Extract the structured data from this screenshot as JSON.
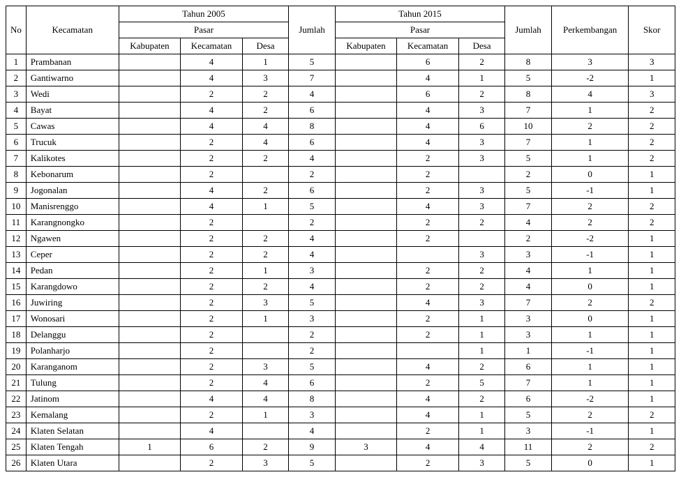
{
  "table": {
    "headers": {
      "no": "No",
      "kecamatan": "Kecamatan",
      "tahun2005": "Tahun 2005",
      "tahun2015": "Tahun 2015",
      "pasar": "Pasar",
      "kabupaten": "Kabupaten",
      "kecamatan_col": "Kecamatan",
      "desa": "Desa",
      "jumlah": "Jumlah",
      "perkembangan": "Perkembangan",
      "skor": "Skor"
    },
    "rows": [
      {
        "no": "1",
        "name": "Prambanan",
        "kab05": "",
        "kec05": "4",
        "desa05": "1",
        "jml05": "5",
        "kab15": "",
        "kec15": "6",
        "desa15": "2",
        "jml15": "8",
        "perk": "3",
        "skor": "3"
      },
      {
        "no": "2",
        "name": "Gantiwarno",
        "kab05": "",
        "kec05": "4",
        "desa05": "3",
        "jml05": "7",
        "kab15": "",
        "kec15": "4",
        "desa15": "1",
        "jml15": "5",
        "perk": "-2",
        "skor": "1"
      },
      {
        "no": "3",
        "name": "Wedi",
        "kab05": "",
        "kec05": "2",
        "desa05": "2",
        "jml05": "4",
        "kab15": "",
        "kec15": "6",
        "desa15": "2",
        "jml15": "8",
        "perk": "4",
        "skor": "3"
      },
      {
        "no": "4",
        "name": "Bayat",
        "kab05": "",
        "kec05": "4",
        "desa05": "2",
        "jml05": "6",
        "kab15": "",
        "kec15": "4",
        "desa15": "3",
        "jml15": "7",
        "perk": "1",
        "skor": "2"
      },
      {
        "no": "5",
        "name": "Cawas",
        "kab05": "",
        "kec05": "4",
        "desa05": "4",
        "jml05": "8",
        "kab15": "",
        "kec15": "4",
        "desa15": "6",
        "jml15": "10",
        "perk": "2",
        "skor": "2"
      },
      {
        "no": "6",
        "name": "Trucuk",
        "kab05": "",
        "kec05": "2",
        "desa05": "4",
        "jml05": "6",
        "kab15": "",
        "kec15": "4",
        "desa15": "3",
        "jml15": "7",
        "perk": "1",
        "skor": "2"
      },
      {
        "no": "7",
        "name": "Kalikotes",
        "kab05": "",
        "kec05": "2",
        "desa05": "2",
        "jml05": "4",
        "kab15": "",
        "kec15": "2",
        "desa15": "3",
        "jml15": "5",
        "perk": "1",
        "skor": "2"
      },
      {
        "no": "8",
        "name": "Kebonarum",
        "kab05": "",
        "kec05": "2",
        "desa05": "",
        "jml05": "2",
        "kab15": "",
        "kec15": "2",
        "desa15": "",
        "jml15": "2",
        "perk": "0",
        "skor": "1"
      },
      {
        "no": "9",
        "name": "Jogonalan",
        "kab05": "",
        "kec05": "4",
        "desa05": "2",
        "jml05": "6",
        "kab15": "",
        "kec15": "2",
        "desa15": "3",
        "jml15": "5",
        "perk": "-1",
        "skor": "1"
      },
      {
        "no": "10",
        "name": "Manisrenggo",
        "kab05": "",
        "kec05": "4",
        "desa05": "1",
        "jml05": "5",
        "kab15": "",
        "kec15": "4",
        "desa15": "3",
        "jml15": "7",
        "perk": "2",
        "skor": "2"
      },
      {
        "no": "11",
        "name": "Karangnongko",
        "kab05": "",
        "kec05": "2",
        "desa05": "",
        "jml05": "2",
        "kab15": "",
        "kec15": "2",
        "desa15": "2",
        "jml15": "4",
        "perk": "2",
        "skor": "2"
      },
      {
        "no": "12",
        "name": "Ngawen",
        "kab05": "",
        "kec05": "2",
        "desa05": "2",
        "jml05": "4",
        "kab15": "",
        "kec15": "2",
        "desa15": "",
        "jml15": "2",
        "perk": "-2",
        "skor": "1"
      },
      {
        "no": "13",
        "name": "Ceper",
        "kab05": "",
        "kec05": "2",
        "desa05": "2",
        "jml05": "4",
        "kab15": "",
        "kec15": "",
        "desa15": "3",
        "jml15": "3",
        "perk": "-1",
        "skor": "1"
      },
      {
        "no": "14",
        "name": "Pedan",
        "kab05": "",
        "kec05": "2",
        "desa05": "1",
        "jml05": "3",
        "kab15": "",
        "kec15": "2",
        "desa15": "2",
        "jml15": "4",
        "perk": "1",
        "skor": "1"
      },
      {
        "no": "15",
        "name": "Karangdowo",
        "kab05": "",
        "kec05": "2",
        "desa05": "2",
        "jml05": "4",
        "kab15": "",
        "kec15": "2",
        "desa15": "2",
        "jml15": "4",
        "perk": "0",
        "skor": "1"
      },
      {
        "no": "16",
        "name": "Juwiring",
        "kab05": "",
        "kec05": "2",
        "desa05": "3",
        "jml05": "5",
        "kab15": "",
        "kec15": "4",
        "desa15": "3",
        "jml15": "7",
        "perk": "2",
        "skor": "2"
      },
      {
        "no": "17",
        "name": "Wonosari",
        "kab05": "",
        "kec05": "2",
        "desa05": "1",
        "jml05": "3",
        "kab15": "",
        "kec15": "2",
        "desa15": "1",
        "jml15": "3",
        "perk": "0",
        "skor": "1"
      },
      {
        "no": "18",
        "name": "Delanggu",
        "kab05": "",
        "kec05": "2",
        "desa05": "",
        "jml05": "2",
        "kab15": "",
        "kec15": "2",
        "desa15": "1",
        "jml15": "3",
        "perk": "1",
        "skor": "1"
      },
      {
        "no": "19",
        "name": "Polanharjo",
        "kab05": "",
        "kec05": "2",
        "desa05": "",
        "jml05": "2",
        "kab15": "",
        "kec15": "",
        "desa15": "1",
        "jml15": "1",
        "perk": "-1",
        "skor": "1"
      },
      {
        "no": "20",
        "name": "Karanganom",
        "kab05": "",
        "kec05": "2",
        "desa05": "3",
        "jml05": "5",
        "kab15": "",
        "kec15": "4",
        "desa15": "2",
        "jml15": "6",
        "perk": "1",
        "skor": "1"
      },
      {
        "no": "21",
        "name": "Tulung",
        "kab05": "",
        "kec05": "2",
        "desa05": "4",
        "jml05": "6",
        "kab15": "",
        "kec15": "2",
        "desa15": "5",
        "jml15": "7",
        "perk": "1",
        "skor": "1"
      },
      {
        "no": "22",
        "name": "Jatinom",
        "kab05": "",
        "kec05": "4",
        "desa05": "4",
        "jml05": "8",
        "kab15": "",
        "kec15": "4",
        "desa15": "2",
        "jml15": "6",
        "perk": "-2",
        "skor": "1"
      },
      {
        "no": "23",
        "name": "Kemalang",
        "kab05": "",
        "kec05": "2",
        "desa05": "1",
        "jml05": "3",
        "kab15": "",
        "kec15": "4",
        "desa15": "1",
        "jml15": "5",
        "perk": "2",
        "skor": "2"
      },
      {
        "no": "24",
        "name": "Klaten Selatan",
        "kab05": "",
        "kec05": "4",
        "desa05": "",
        "jml05": "4",
        "kab15": "",
        "kec15": "2",
        "desa15": "1",
        "jml15": "3",
        "perk": "-1",
        "skor": "1"
      },
      {
        "no": "25",
        "name": "Klaten Tengah",
        "kab05": "1",
        "kec05": "6",
        "desa05": "2",
        "jml05": "9",
        "kab15": "3",
        "kec15": "4",
        "desa15": "4",
        "jml15": "11",
        "perk": "2",
        "skor": "2"
      },
      {
        "no": "26",
        "name": "Klaten Utara",
        "kab05": "",
        "kec05": "2",
        "desa05": "3",
        "jml05": "5",
        "kab15": "",
        "kec15": "2",
        "desa15": "3",
        "jml15": "5",
        "perk": "0",
        "skor": "1"
      }
    ]
  }
}
